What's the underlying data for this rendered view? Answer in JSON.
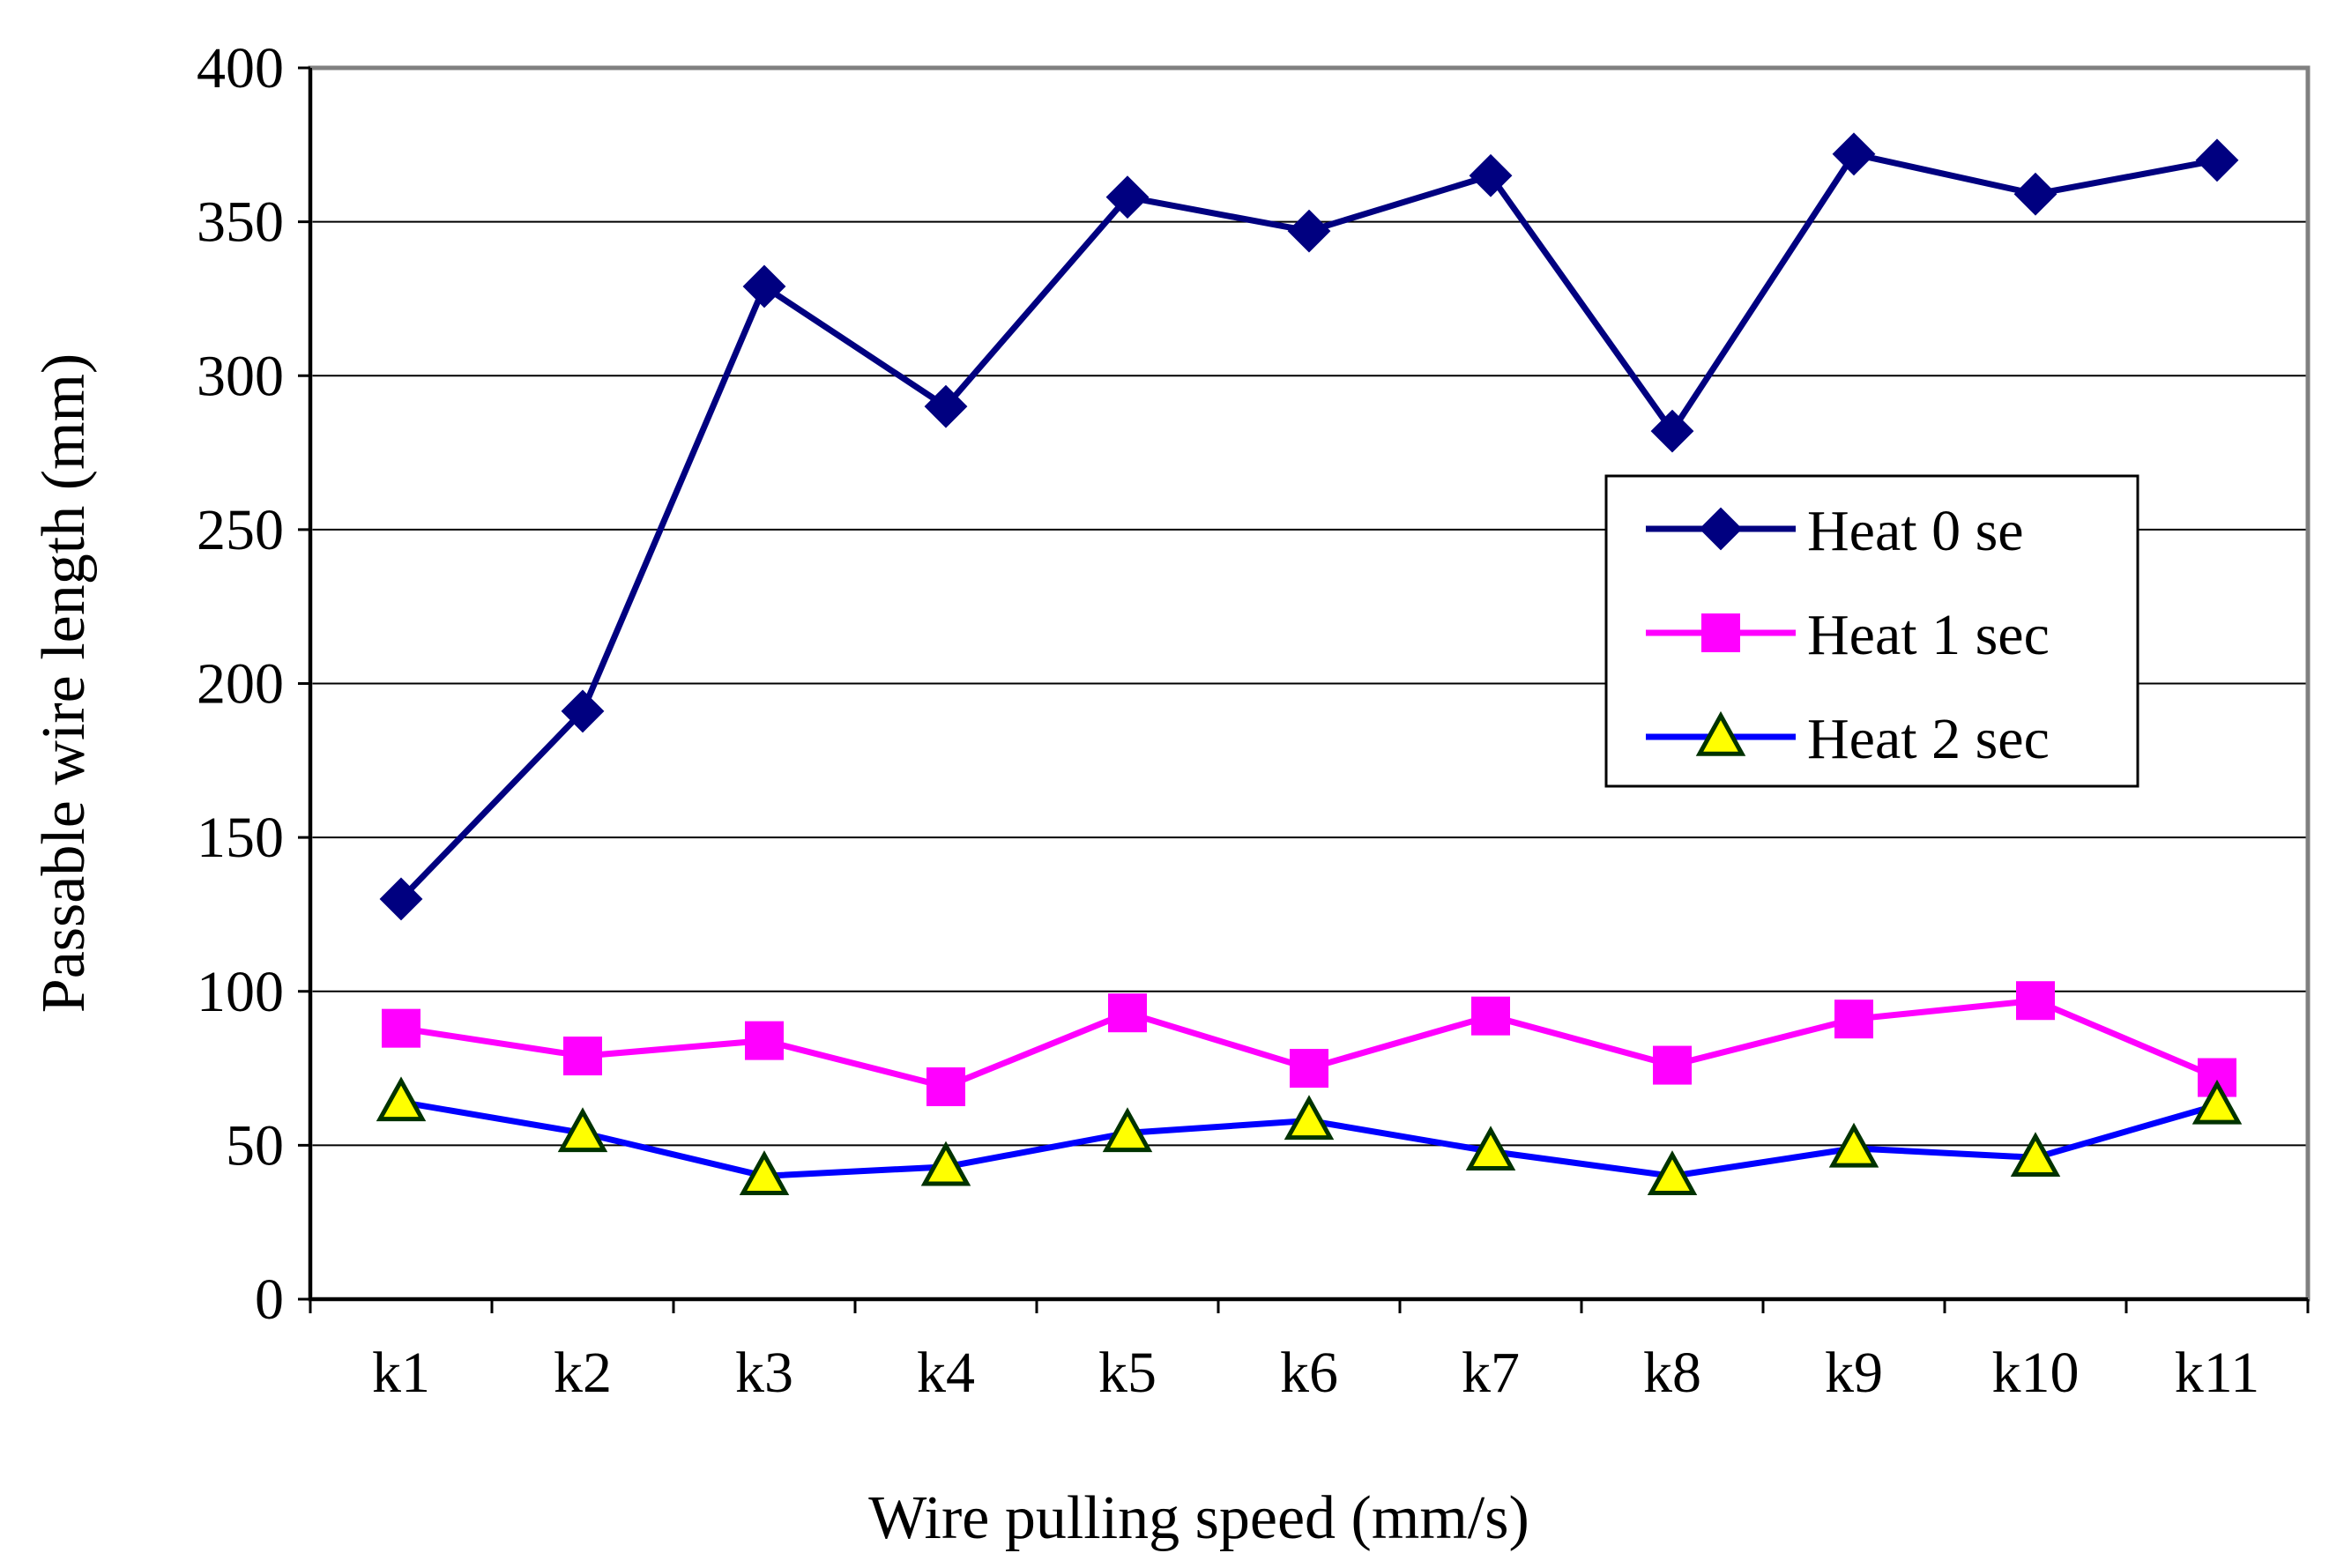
{
  "chart_data": {
    "type": "line",
    "title": "",
    "xlabel": "Wire pulling speed (mm/s)",
    "ylabel": "Passable wire length (mm)",
    "ylim": [
      0,
      400
    ],
    "yticks": [
      0,
      50,
      100,
      150,
      200,
      250,
      300,
      350,
      400
    ],
    "grid": true,
    "legend_position": "right",
    "categories": [
      "k1",
      "k2",
      "k3",
      "k4",
      "k5",
      "k6",
      "k7",
      "k8",
      "k9",
      "k10",
      "k11"
    ],
    "series": [
      {
        "name": "Heat 0 se",
        "color": "#000080",
        "marker": "diamond",
        "values": [
          130,
          191,
          329,
          290,
          358,
          347,
          365,
          282,
          372,
          359,
          370
        ]
      },
      {
        "name": "Heat 1 sec",
        "color": "#FF00FF",
        "marker": "square",
        "values": [
          88,
          79,
          84,
          69,
          93,
          75,
          92,
          76,
          91,
          97,
          72
        ]
      },
      {
        "name": "Heat 2 sec",
        "color": "#0000FF",
        "marker": "triangle",
        "marker_fill": "#FFFF00",
        "marker_stroke": "#003300",
        "values": [
          64,
          54,
          40,
          43,
          54,
          58,
          48,
          40,
          49,
          46,
          63
        ]
      }
    ]
  }
}
